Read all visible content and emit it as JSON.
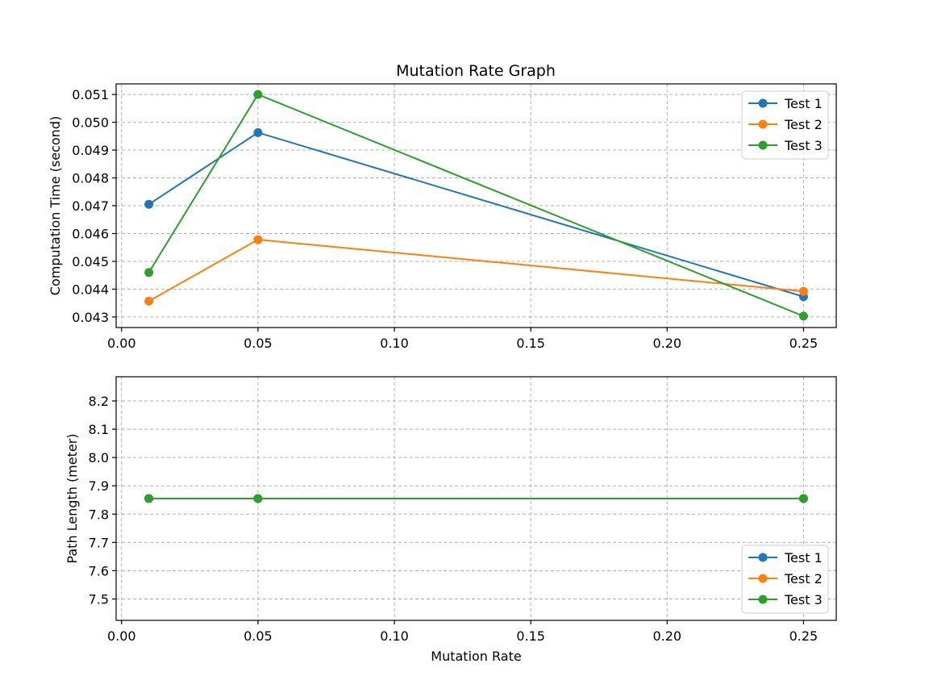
{
  "figure": {
    "title": "Mutation Rate Graph"
  },
  "chart_data": [
    {
      "type": "line",
      "title": "Mutation Rate Graph",
      "xlabel": "",
      "ylabel": "Computation Time (second)",
      "x": [
        0.01,
        0.05,
        0.25
      ],
      "xlim": [
        -0.002,
        0.262
      ],
      "ylim": [
        0.04262,
        0.05138
      ],
      "xticks": [
        "0.00",
        "0.05",
        "0.10",
        "0.15",
        "0.20",
        "0.25"
      ],
      "yticks": [
        "0.043",
        "0.044",
        "0.045",
        "0.046",
        "0.047",
        "0.048",
        "0.049",
        "0.050",
        "0.051"
      ],
      "grid": true,
      "legend": "top-right",
      "series": [
        {
          "name": "Test 1",
          "color": "#1f77b4",
          "values": [
            0.04705,
            0.04963,
            0.04373
          ]
        },
        {
          "name": "Test 2",
          "color": "#ff7f0e",
          "values": [
            0.04357,
            0.04578,
            0.04392
          ]
        },
        {
          "name": "Test 3",
          "color": "#2ca02c",
          "values": [
            0.0446,
            0.051,
            0.04303
          ]
        }
      ]
    },
    {
      "type": "line",
      "title": "",
      "xlabel": "Mutation Rate",
      "ylabel": "Path Length (meter)",
      "x": [
        0.01,
        0.05,
        0.25
      ],
      "xlim": [
        -0.002,
        0.262
      ],
      "ylim": [
        7.4245,
        8.2855
      ],
      "xticks": [
        "0.00",
        "0.05",
        "0.10",
        "0.15",
        "0.20",
        "0.25"
      ],
      "yticks": [
        "7.5",
        "7.6",
        "7.7",
        "7.8",
        "7.9",
        "8.0",
        "8.1",
        "8.2"
      ],
      "grid": true,
      "legend": "bottom-right",
      "series": [
        {
          "name": "Test 1",
          "color": "#1f77b4",
          "values": [
            7.855,
            7.855,
            7.855
          ]
        },
        {
          "name": "Test 2",
          "color": "#ff7f0e",
          "values": [
            7.855,
            7.855,
            7.855
          ]
        },
        {
          "name": "Test 3",
          "color": "#2ca02c",
          "values": [
            7.855,
            7.855,
            7.855
          ]
        }
      ]
    }
  ]
}
